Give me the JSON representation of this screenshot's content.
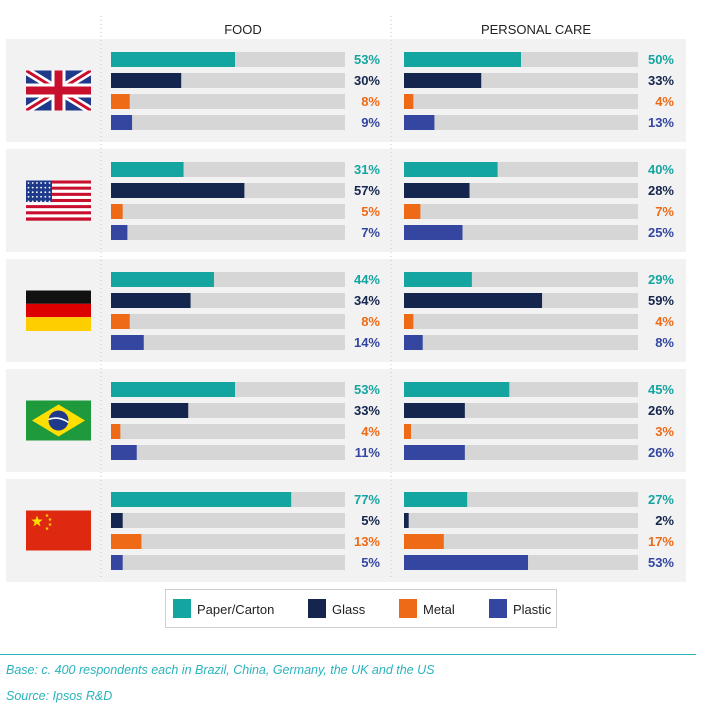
{
  "chart_data": {
    "type": "bar",
    "orientation": "horizontal",
    "panels": [
      "FOOD",
      "PERSONAL CARE"
    ],
    "groups": [
      "UK",
      "US",
      "Germany",
      "Brazil",
      "China"
    ],
    "series": [
      {
        "name": "Paper/Carton",
        "color": "#14a5a0",
        "food": [
          53,
          31,
          44,
          53,
          77
        ],
        "personal_care": [
          50,
          40,
          29,
          45,
          27
        ]
      },
      {
        "name": "Glass",
        "color": "#14264d",
        "food": [
          30,
          57,
          34,
          33,
          5
        ],
        "personal_care": [
          33,
          28,
          59,
          26,
          2
        ]
      },
      {
        "name": "Metal",
        "color": "#ee6a16",
        "food": [
          8,
          5,
          8,
          4,
          13
        ],
        "personal_care": [
          4,
          7,
          4,
          3,
          17
        ]
      },
      {
        "name": "Plastic",
        "color": "#3446a0",
        "food": [
          9,
          7,
          14,
          11,
          5
        ],
        "personal_care": [
          13,
          25,
          8,
          26,
          53
        ]
      }
    ],
    "value_suffix": "%",
    "xlim": [
      0,
      100
    ],
    "legend_position": "bottom"
  },
  "colors": {
    "track": "#d6d6d6",
    "row_background": "#f2f2f2",
    "note": "#2ab3bd"
  },
  "flags": [
    "uk-flag-icon",
    "us-flag-icon",
    "germany-flag-icon",
    "brazil-flag-icon",
    "china-flag-icon"
  ],
  "notes": {
    "base": "Base: c. 400 respondents each in Brazil, China, Germany, the UK and the US",
    "source": "Source: Ipsos R&D"
  }
}
